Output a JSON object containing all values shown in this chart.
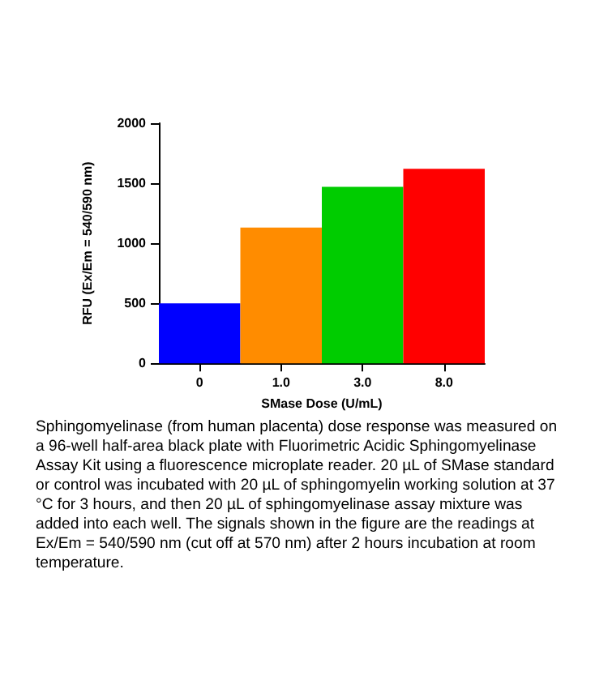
{
  "chart_data": {
    "type": "bar",
    "xlabel": "SMase Dose (U/mL)",
    "ylabel": "RFU (Ex/Em = 540/590 nm)",
    "categories": [
      "0",
      "1.0",
      "3.0",
      "8.0"
    ],
    "values": [
      500,
      1130,
      1470,
      1620
    ],
    "colors": [
      "#0000ff",
      "#ff8c00",
      "#00cc00",
      "#ff0000"
    ],
    "ylim": [
      0,
      2000
    ],
    "yticks": [
      0,
      500,
      1000,
      1500,
      2000
    ],
    "grid": false,
    "annotations": [
      "Sphingomyelinase (from human placenta) dose response was measured on a 96-well half-area black plate with Fluorimetric Acidic Sphingomyelinase Assay Kit using a fluorescence microplate reader. 20 µL of SMase standard or control was incubated with 20 µL of sphingomyelin working solution at 37 °C for 3 hours, and then 20 µL of sphingomyelinase assay mixture was added into each well. The signals shown in the figure are the readings at Ex/Em = 540/590 nm (cut off at 570 nm) after 2 hours incubation at room temperature."
    ]
  }
}
